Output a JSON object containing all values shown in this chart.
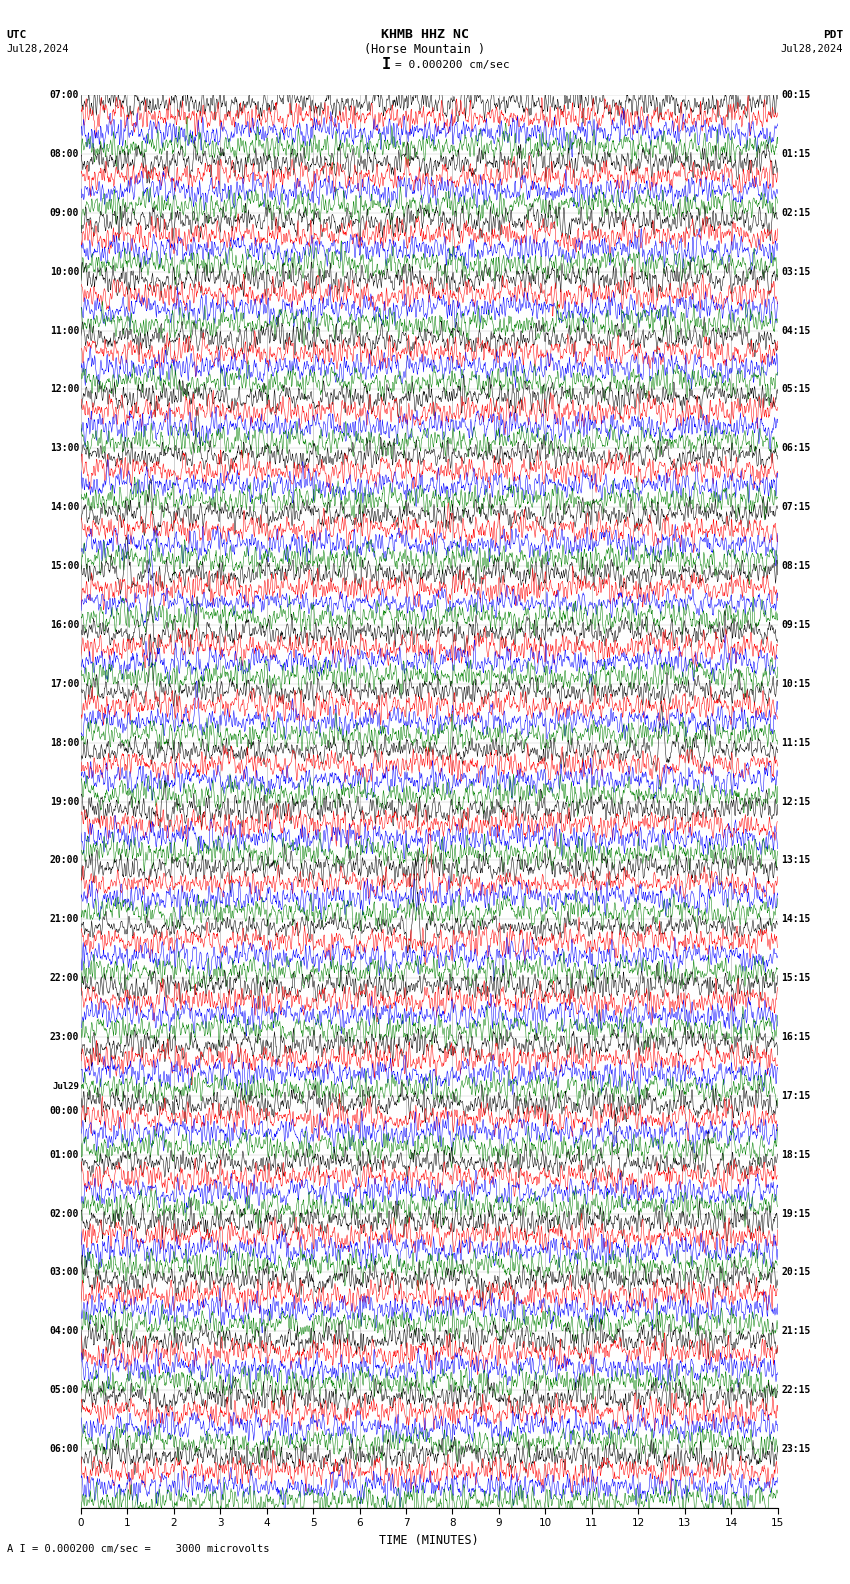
{
  "title_line1": "KHMB HHZ NC",
  "title_line2": "(Horse Mountain )",
  "scale_text": "= 0.000200 cm/sec",
  "scale_bracket": "I",
  "utc_label": "UTC",
  "pdt_label": "PDT",
  "date_left": "Jul28,2024",
  "date_right": "Jul28,2024",
  "xlabel": "TIME (MINUTES)",
  "footer": "A I = 0.000200 cm/sec =    3000 microvolts",
  "bg_color": "#ffffff",
  "trace_colors": [
    "black",
    "red",
    "blue",
    "green"
  ],
  "left_labels_utc": [
    "07:00",
    "",
    "",
    "",
    "08:00",
    "",
    "",
    "",
    "09:00",
    "",
    "",
    "",
    "10:00",
    "",
    "",
    "",
    "11:00",
    "",
    "",
    "",
    "12:00",
    "",
    "",
    "",
    "13:00",
    "",
    "",
    "",
    "14:00",
    "",
    "",
    "",
    "15:00",
    "",
    "",
    "",
    "16:00",
    "",
    "",
    "",
    "17:00",
    "",
    "",
    "",
    "18:00",
    "",
    "",
    "",
    "19:00",
    "",
    "",
    "",
    "20:00",
    "",
    "",
    "",
    "21:00",
    "",
    "",
    "",
    "22:00",
    "",
    "",
    "",
    "23:00",
    "",
    "",
    "",
    "Jul29",
    "00:00",
    "",
    "",
    "01:00",
    "",
    "",
    "",
    "02:00",
    "",
    "",
    "",
    "03:00",
    "",
    "",
    "",
    "04:00",
    "",
    "",
    "",
    "05:00",
    "",
    "",
    "",
    "06:00",
    "",
    "",
    ""
  ],
  "right_labels_pdt": [
    "00:15",
    "",
    "",
    "",
    "01:15",
    "",
    "",
    "",
    "02:15",
    "",
    "",
    "",
    "03:15",
    "",
    "",
    "",
    "04:15",
    "",
    "",
    "",
    "05:15",
    "",
    "",
    "",
    "06:15",
    "",
    "",
    "",
    "07:15",
    "",
    "",
    "",
    "08:15",
    "",
    "",
    "",
    "09:15",
    "",
    "",
    "",
    "10:15",
    "",
    "",
    "",
    "11:15",
    "",
    "",
    "",
    "12:15",
    "",
    "",
    "",
    "13:15",
    "",
    "",
    "",
    "14:15",
    "",
    "",
    "",
    "15:15",
    "",
    "",
    "",
    "16:15",
    "",
    "",
    "",
    "17:15",
    "",
    "",
    "",
    "18:15",
    "",
    "",
    "",
    "19:15",
    "",
    "",
    "",
    "20:15",
    "",
    "",
    "",
    "21:15",
    "",
    "",
    "",
    "22:15",
    "",
    "",
    "",
    "23:15",
    "",
    "",
    ""
  ],
  "num_rows": 96,
  "x_ticks": [
    0,
    1,
    2,
    3,
    4,
    5,
    6,
    7,
    8,
    9,
    10,
    11,
    12,
    13,
    14,
    15
  ],
  "xlim": [
    0,
    15
  ],
  "grid_color": "#aaaaaa",
  "grid_linewidth": 0.5
}
